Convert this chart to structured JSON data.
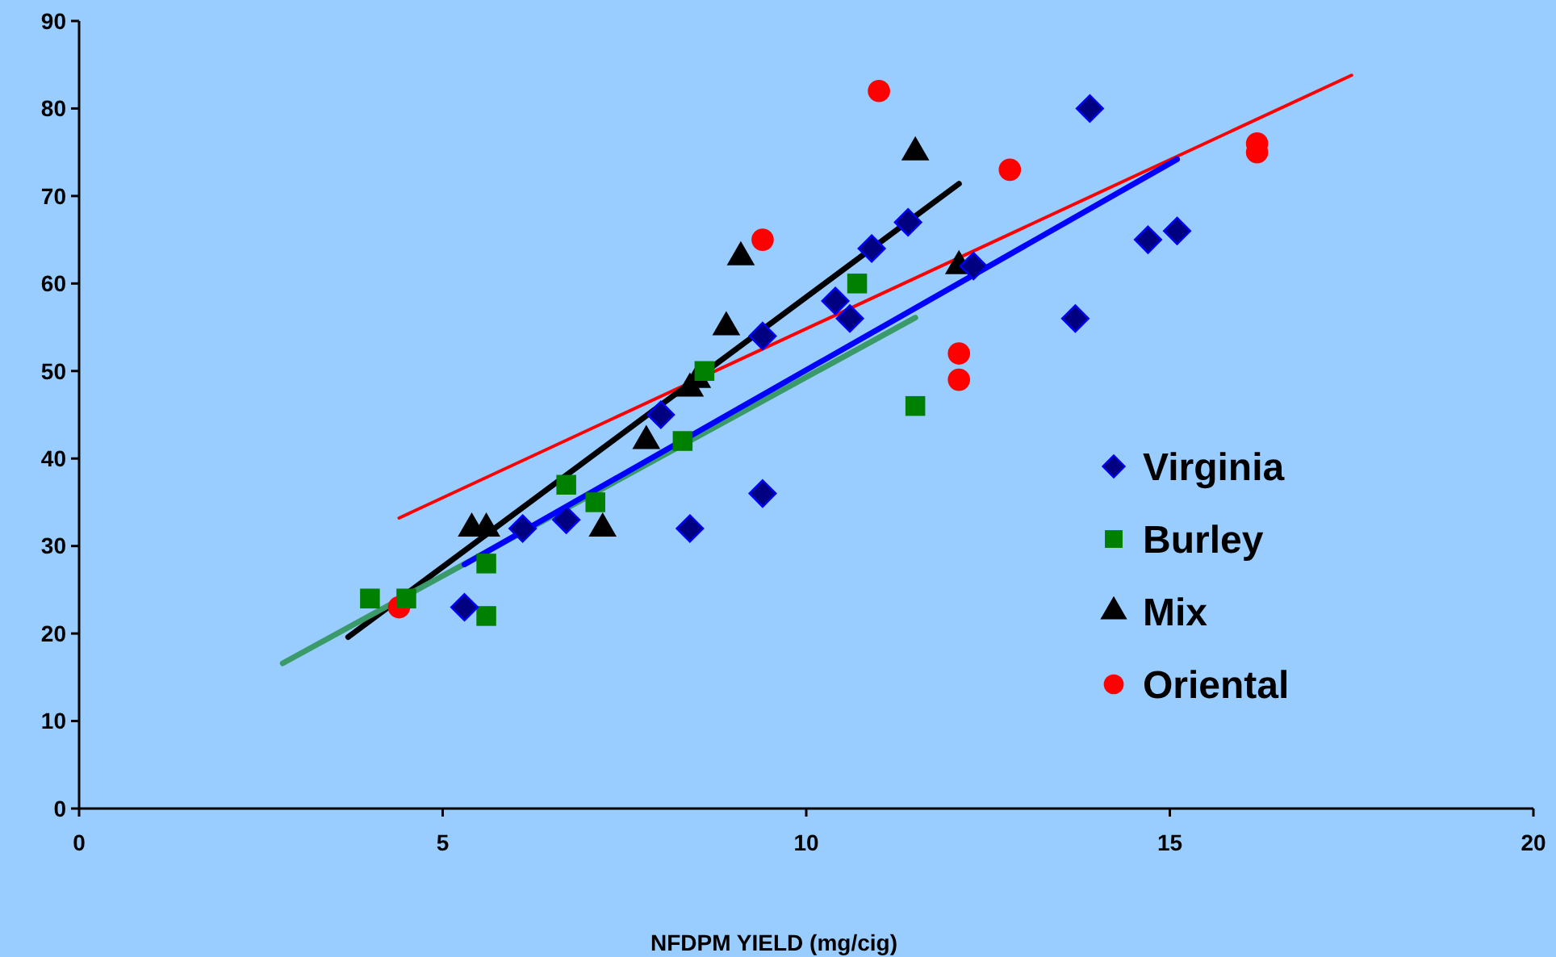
{
  "chart_data": {
    "type": "scatter",
    "xlabel": "NFDPM YIELD (mg/cig)",
    "xlim": [
      0,
      20
    ],
    "xticks": [
      0,
      5,
      10,
      15,
      20
    ],
    "ylim": [
      0,
      90
    ],
    "yticks": [
      0,
      10,
      20,
      30,
      40,
      50,
      60,
      70,
      80,
      90
    ],
    "grid": false,
    "legend": "right",
    "series": [
      {
        "name": "Virginia",
        "marker": "diamond",
        "color": "#000080",
        "x": [
          5.3,
          6.1,
          6.7,
          8.4,
          8.0,
          9.4,
          9.4,
          10.4,
          10.6,
          10.9,
          11.4,
          12.3,
          13.9,
          13.7,
          14.7,
          15.1
        ],
        "values": [
          23,
          32,
          33,
          32,
          45,
          36,
          54,
          58,
          56,
          64,
          67,
          62,
          80,
          56,
          65,
          66
        ]
      },
      {
        "name": "Burley",
        "marker": "square",
        "color": "#008000",
        "x": [
          4.0,
          4.5,
          5.6,
          5.6,
          6.7,
          7.1,
          8.3,
          8.6,
          10.7,
          11.5
        ],
        "values": [
          24,
          24,
          28,
          22,
          37,
          35,
          42,
          50,
          60,
          46
        ]
      },
      {
        "name": "Mix",
        "marker": "triangle",
        "color": "#000000",
        "x": [
          5.4,
          5.6,
          7.2,
          7.8,
          8.4,
          8.5,
          8.9,
          9.1,
          11.5,
          12.1
        ],
        "values": [
          32,
          32,
          32,
          42,
          48,
          49,
          55,
          63,
          75,
          62
        ]
      },
      {
        "name": "Oriental",
        "marker": "circle",
        "color": "#ff0000",
        "x": [
          4.4,
          9.4,
          11.0,
          12.1,
          12.1,
          12.8,
          16.2,
          16.2
        ],
        "values": [
          23,
          65,
          82,
          52,
          49,
          73,
          76,
          75
        ]
      },
      {
        "type": "line",
        "color": "#0000ff",
        "x": [
          5.3,
          15.1
        ],
        "values": [
          27.9,
          74.2
        ]
      },
      {
        "type": "line",
        "color": "#3a9a6a",
        "x": [
          2.8,
          11.5
        ],
        "values": [
          16.6,
          56.1
        ]
      },
      {
        "type": "line",
        "color": "#000000",
        "x": [
          3.7,
          12.1
        ],
        "values": [
          19.6,
          71.4
        ]
      },
      {
        "type": "line",
        "color": "#ff0000",
        "x": [
          4.4,
          17.5
        ],
        "values": [
          33.2,
          83.8
        ]
      }
    ]
  }
}
